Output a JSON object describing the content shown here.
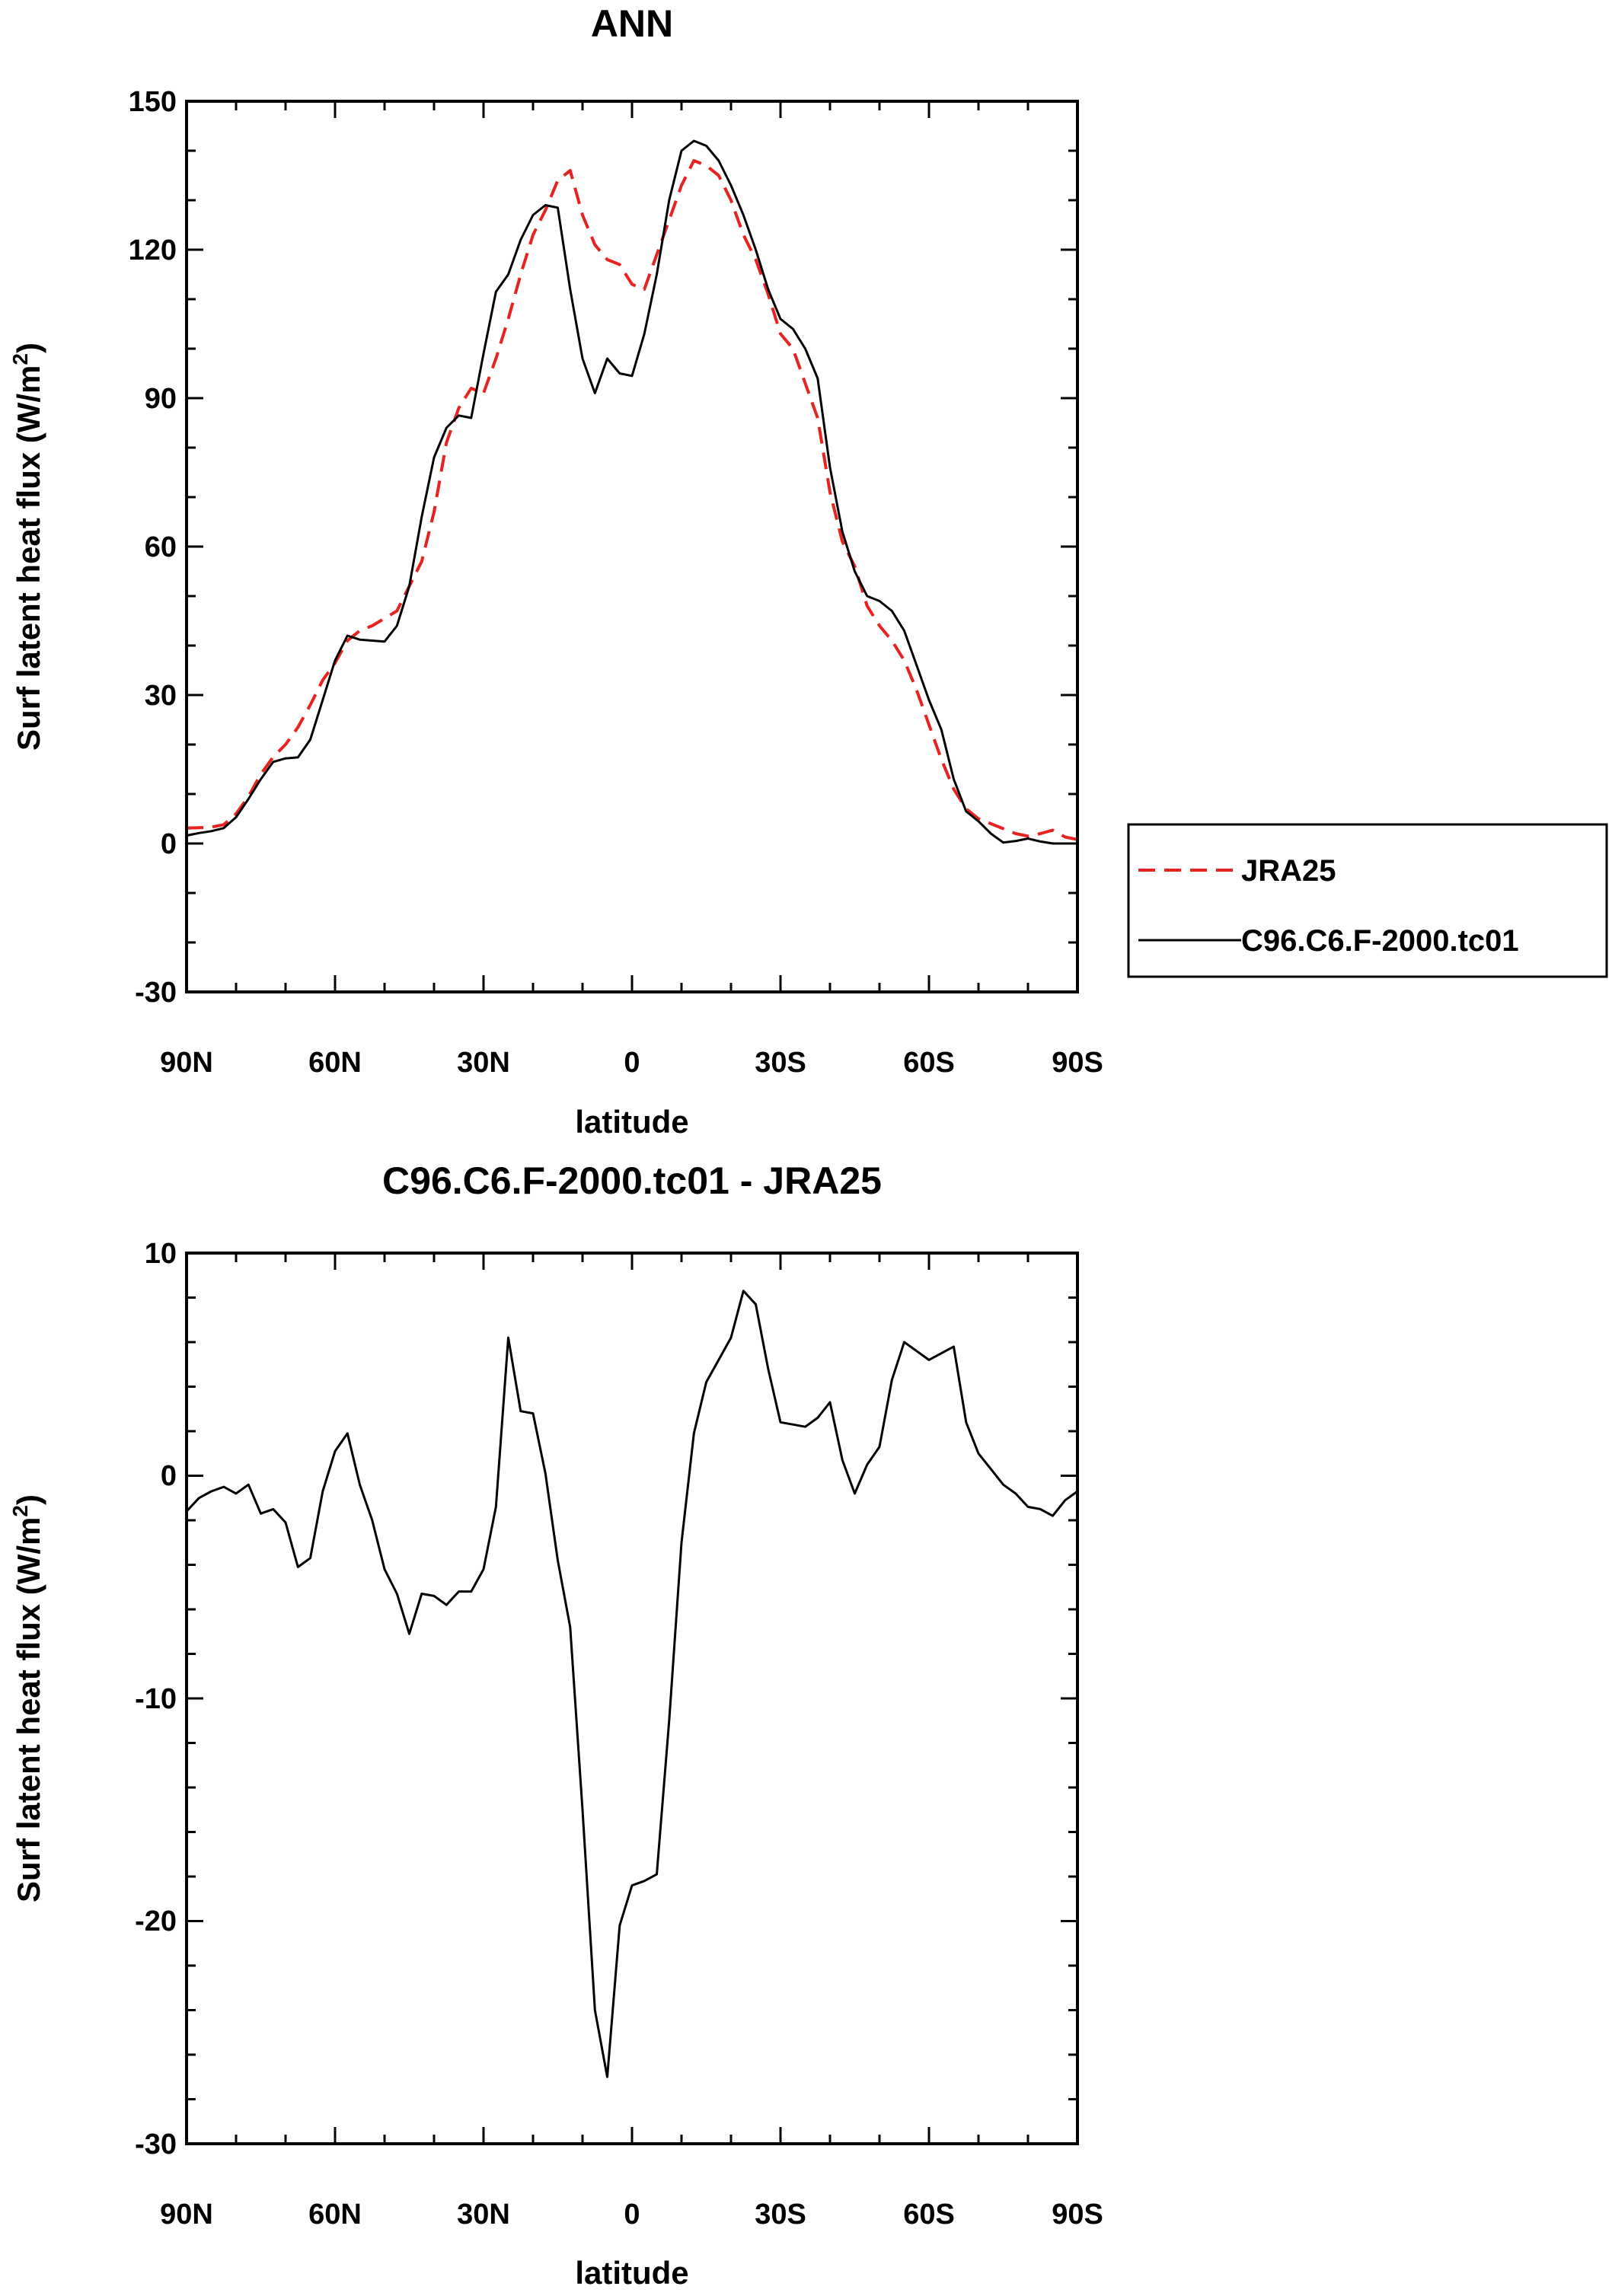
{
  "chart_data": [
    {
      "type": "line",
      "title": "ANN",
      "xlabel": "latitude",
      "ylabel": "Surf latent heat flux (W/m",
      "ylabel_sup": "2",
      "ylabel_close": ")",
      "xlim": [
        90,
        -90
      ],
      "ylim": [
        -30,
        150
      ],
      "x_ticks": [
        90,
        60,
        30,
        0,
        -30,
        -60,
        -90
      ],
      "x_tick_labels": [
        "90N",
        "60N",
        "30N",
        "0",
        "30S",
        "60S",
        "90S"
      ],
      "y_ticks": [
        -30,
        0,
        30,
        60,
        90,
        120,
        150
      ],
      "y_tick_labels": [
        "-30",
        "0",
        "30",
        "60",
        "90",
        "120",
        "150"
      ],
      "legend_placement": "right",
      "series": [
        {
          "name": "JRA25",
          "color": "#e8231f",
          "dash": "dashed",
          "x": [
            90,
            87.5,
            85,
            82.5,
            80,
            77.5,
            75,
            72.5,
            70,
            67.5,
            65,
            62.5,
            60,
            57.5,
            55,
            52.5,
            50,
            47.5,
            45,
            42.5,
            40,
            37.5,
            35,
            32.5,
            30,
            27.5,
            25,
            22.5,
            20,
            17.5,
            15,
            12.5,
            10,
            7.5,
            5,
            2.5,
            0,
            -2.5,
            -5,
            -7.5,
            -10,
            -12.5,
            -15,
            -17.5,
            -20,
            -22.5,
            -25,
            -27.5,
            -30,
            -32.5,
            -35,
            -37.5,
            -40,
            -42.5,
            -45,
            -47.5,
            -50,
            -52.5,
            -55,
            -57.5,
            -60,
            -62.5,
            -65,
            -67.5,
            -70,
            -72.5,
            -75,
            -77.5,
            -80,
            -82.5,
            -85,
            -87.5,
            -90
          ],
          "values": [
            3.1,
            3.2,
            3.3,
            3.8,
            6,
            9.5,
            14,
            17.5,
            20,
            23.5,
            28,
            33,
            36.5,
            41,
            43,
            44,
            45.5,
            47,
            52,
            57,
            67,
            81,
            88,
            92,
            91,
            98,
            106,
            115,
            123,
            128,
            134,
            136,
            127,
            121,
            118,
            117,
            113,
            112,
            119,
            126,
            133,
            138,
            137,
            135,
            130,
            123,
            118,
            111,
            103,
            100,
            93,
            86,
            71,
            61,
            56,
            48,
            44,
            41,
            37,
            31,
            24,
            17,
            11,
            7,
            5,
            4,
            3,
            2,
            1.5,
            2,
            2.7,
            1.3,
            0.8
          ]
        },
        {
          "name": "C96.C6.F-2000.tc01",
          "color": "#000000",
          "dash": "solid",
          "x": [
            90,
            87.5,
            85,
            82.5,
            80,
            77.5,
            75,
            72.5,
            70,
            67.5,
            65,
            62.5,
            60,
            57.5,
            55,
            52.5,
            50,
            47.5,
            45,
            42.5,
            40,
            37.5,
            35,
            32.5,
            30,
            27.5,
            25,
            22.5,
            20,
            17.5,
            15,
            12.5,
            10,
            7.5,
            5,
            2.5,
            0,
            -2.5,
            -5,
            -7.5,
            -10,
            -12.5,
            -15,
            -17.5,
            -20,
            -22.5,
            -25,
            -27.5,
            -30,
            -32.5,
            -35,
            -37.5,
            -40,
            -42.5,
            -45,
            -47.5,
            -50,
            -52.5,
            -55,
            -57.5,
            -60,
            -62.5,
            -65,
            -67.5,
            -70,
            -72.5,
            -75,
            -77.5,
            -80,
            -82.5,
            -85,
            -87.5,
            -90
          ],
          "values": [
            1.6,
            2.1,
            2.5,
            3.1,
            5.3,
            9,
            13,
            16.5,
            17.2,
            17.4,
            21,
            29,
            37,
            42,
            41.2,
            41,
            40.8,
            44,
            52,
            66,
            78,
            84,
            86.5,
            86,
            99,
            111.5,
            115,
            122,
            127,
            129,
            128.5,
            112,
            98,
            91,
            98,
            95,
            94.5,
            103,
            115,
            130,
            140,
            142,
            141,
            138,
            133,
            127,
            120,
            112,
            106,
            104,
            100,
            94,
            76,
            63,
            55,
            50,
            49,
            47,
            43,
            36,
            29,
            23,
            13,
            6.5,
            4.5,
            2,
            0.2,
            0.5,
            1,
            0.4,
            0,
            0,
            0
          ]
        }
      ]
    },
    {
      "type": "line",
      "title": "C96.C6.F-2000.tc01 - JRA25",
      "xlabel": "latitude",
      "ylabel": "Surf latent heat flux (W/m",
      "ylabel_sup": "2",
      "ylabel_close": ")",
      "xlim": [
        90,
        -90
      ],
      "ylim": [
        -30,
        10
      ],
      "x_ticks": [
        90,
        60,
        30,
        0,
        -30,
        -60,
        -90
      ],
      "x_tick_labels": [
        "90N",
        "60N",
        "30N",
        "0",
        "30S",
        "60S",
        "90S"
      ],
      "y_ticks": [
        -30,
        -20,
        -10,
        0,
        10
      ],
      "y_tick_labels": [
        "-30",
        "-20",
        "-10",
        "0",
        "10"
      ],
      "series": [
        {
          "color": "#000000",
          "dash": "solid",
          "x": [
            90,
            87.5,
            85,
            82.5,
            80,
            77.5,
            75,
            72.5,
            70,
            67.5,
            65,
            62.5,
            60,
            57.5,
            55,
            52.5,
            50,
            47.5,
            45,
            42.5,
            40,
            37.5,
            35,
            32.5,
            30,
            27.5,
            25,
            22.5,
            20,
            17.5,
            15,
            12.5,
            10,
            7.5,
            5,
            2.5,
            0,
            -2.5,
            -5,
            -7.5,
            -10,
            -12.5,
            -15,
            -17.5,
            -20,
            -22.5,
            -25,
            -27.5,
            -30,
            -32.5,
            -35,
            -37.5,
            -40,
            -42.5,
            -45,
            -47.5,
            -50,
            -52.5,
            -55,
            -57.5,
            -60,
            -62.5,
            -65,
            -67.5,
            -70,
            -72.5,
            -75,
            -77.5,
            -80,
            -82.5,
            -85,
            -87.5,
            -90
          ],
          "values": [
            -1.6,
            -1.0,
            -0.7,
            -0.5,
            -0.8,
            -0.4,
            -1.7,
            -1.5,
            -2.1,
            -4.1,
            -3.7,
            -0.7,
            1.1,
            1.9,
            -0.4,
            -2.0,
            -4.2,
            -5.3,
            -7.1,
            -5.3,
            -5.4,
            -5.8,
            -5.2,
            -5.2,
            -4.2,
            -1.4,
            6.2,
            2.9,
            2.8,
            0.1,
            -3.8,
            -6.8,
            -15.0,
            -24.0,
            -27.0,
            -20.2,
            -18.4,
            -18.2,
            -17.9,
            -11.0,
            -3.0,
            1.9,
            4.2,
            5.2,
            6.2,
            8.3,
            7.7,
            4.8,
            2.4,
            2.3,
            2.2,
            2.6,
            3.3,
            0.7,
            -0.8,
            0.5,
            1.3,
            4.3,
            6.0,
            5.6,
            5.2,
            5.5,
            5.8,
            2.4,
            1.0,
            0.3,
            -0.4,
            -0.8,
            -1.4,
            -1.5,
            -1.8,
            -1.1,
            -0.7
          ]
        }
      ]
    }
  ]
}
